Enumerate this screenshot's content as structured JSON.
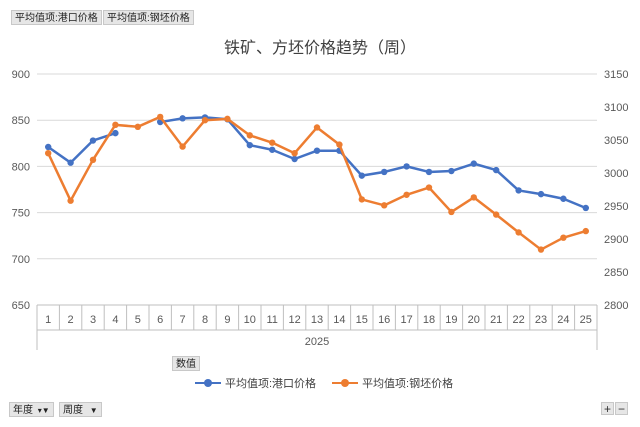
{
  "pivot_buttons": {
    "value_field_1": "平均值项:港口价格",
    "value_field_2": "平均值项:钢坯价格",
    "data_field": "数值",
    "row_field_1": "年度",
    "row_field_2": "周度"
  },
  "zoom": {
    "plus": "+",
    "minus": "−"
  },
  "colors": {
    "series1": "#4472C4",
    "series2": "#ED7D31",
    "grid": "#d9d9d9",
    "axis": "#bfbfbf"
  },
  "chart_data": {
    "type": "line",
    "title": "铁矿、方坯价格趋势（周）",
    "categories": [
      "1",
      "2",
      "3",
      "4",
      "5",
      "6",
      "7",
      "8",
      "9",
      "10",
      "11",
      "12",
      "13",
      "14",
      "15",
      "16",
      "17",
      "18",
      "19",
      "20",
      "21",
      "22",
      "23",
      "24",
      "25"
    ],
    "category_group": "2025",
    "y_left": {
      "min": 650,
      "max": 900,
      "ticks": [
        650,
        700,
        750,
        800,
        850,
        900
      ]
    },
    "y_right": {
      "min": 2800,
      "max": 3150,
      "ticks": [
        2800,
        2850,
        2900,
        2950,
        3000,
        3050,
        3100,
        3150
      ]
    },
    "series": [
      {
        "name": "平均值项:港口价格",
        "axis": "left",
        "values": [
          821,
          804,
          828,
          836,
          null,
          848,
          852,
          853,
          851,
          823,
          818,
          808,
          817,
          817,
          790,
          794,
          800,
          794,
          795,
          803,
          796,
          774,
          770,
          765,
          755
        ]
      },
      {
        "name": "平均值项:钢坯价格",
        "axis": "right",
        "values": [
          3030,
          2958,
          3020,
          3073,
          3070,
          3085,
          3040,
          3080,
          3082,
          3057,
          3046,
          3030,
          3069,
          3043,
          2960,
          2951,
          2967,
          2978,
          2941,
          2963,
          2937,
          2910,
          2884,
          2902,
          2912
        ]
      }
    ],
    "grid": true,
    "legend_position": "bottom"
  }
}
